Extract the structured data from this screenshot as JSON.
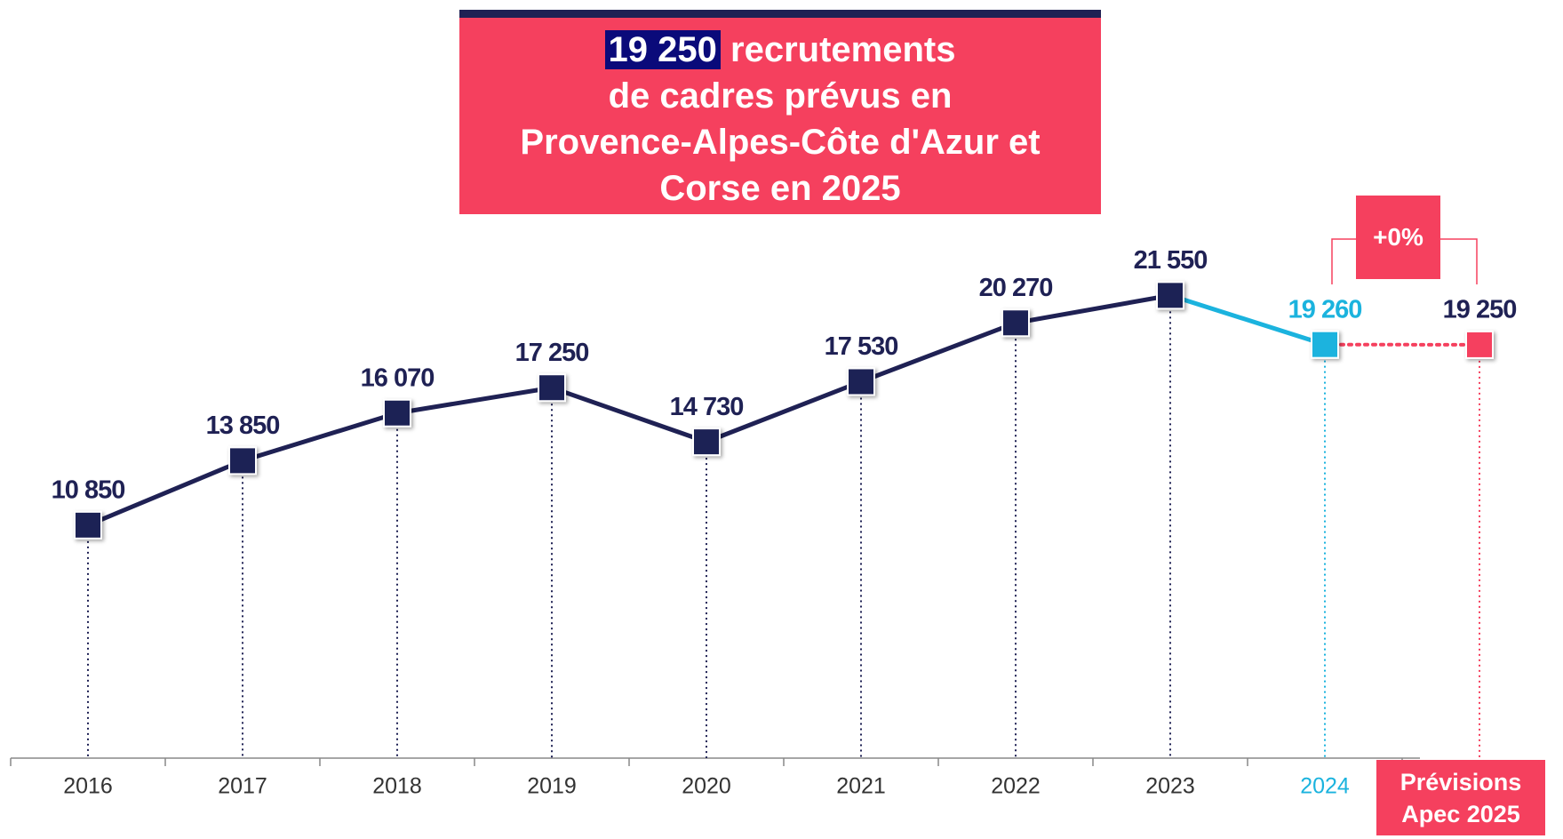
{
  "chart_data": {
    "type": "line",
    "title_highlight": "19 250",
    "title_lines": [
      "recrutements",
      "de cadres prévus en",
      "Provence-Alpes-Côte d'Azur et",
      "Corse en 2025"
    ],
    "categories": [
      "2016",
      "2017",
      "2018",
      "2019",
      "2020",
      "2021",
      "2022",
      "2023",
      "2024",
      "Prévisions Apec 2025"
    ],
    "values": [
      10850,
      13850,
      16070,
      17250,
      14730,
      17530,
      20270,
      21550,
      19260,
      19250
    ],
    "value_labels": [
      "10 850",
      "13 850",
      "16 070",
      "17 250",
      "14 730",
      "17 530",
      "20 270",
      "21 550",
      "19 260",
      "19 250"
    ],
    "colors": [
      "#1f2154",
      "#1f2154",
      "#1f2154",
      "#1f2154",
      "#1f2154",
      "#1f2154",
      "#1f2154",
      "#1f2154",
      "#1bb3de",
      "#f5405e"
    ],
    "forecast_dotted": true,
    "ylim": [
      0,
      25000
    ],
    "annotation": "+0%"
  }
}
